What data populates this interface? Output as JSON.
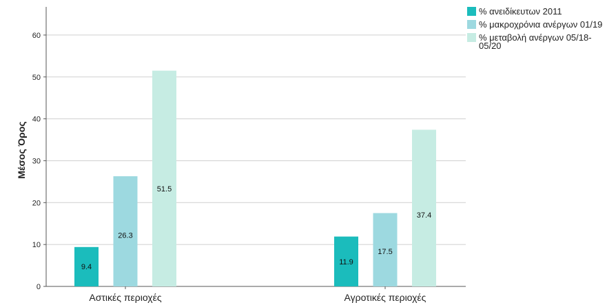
{
  "chart_data": {
    "type": "bar",
    "categories": [
      "Αστικές περιοχές",
      "Αγροτικές περιοχές"
    ],
    "series": [
      {
        "name": "% ανειδίκευτων 2011",
        "values": [
          9.4,
          11.9
        ],
        "color": "#1bbcbc"
      },
      {
        "name": "% μακροχρόνια ανέργων 01/19",
        "values": [
          26.3,
          17.5
        ],
        "color": "#9dd9e0"
      },
      {
        "name": "% μεταβολή  ανέργων 05/18-05/20",
        "name_lines": [
          "% μεταβολή  ανέργων 05/18-",
          "05/20"
        ],
        "values": [
          51.5,
          37.4
        ],
        "color": "#c6ece3"
      }
    ],
    "ylabel": "Μέσος Όρος",
    "xlabel": "",
    "ylim": [
      0,
      65
    ],
    "yticks": [
      0,
      10,
      20,
      30,
      40,
      50,
      60
    ],
    "grid": true,
    "legend_position": "top-right"
  }
}
